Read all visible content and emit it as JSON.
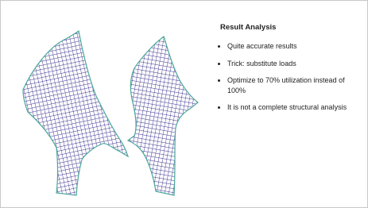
{
  "title": "Result Analysis",
  "bullets": [
    "Quite accurate results",
    "Trick: substitute loads",
    "Optimize to 70% utilization instead of 100%",
    "It is not a complete structural analysis"
  ]
}
